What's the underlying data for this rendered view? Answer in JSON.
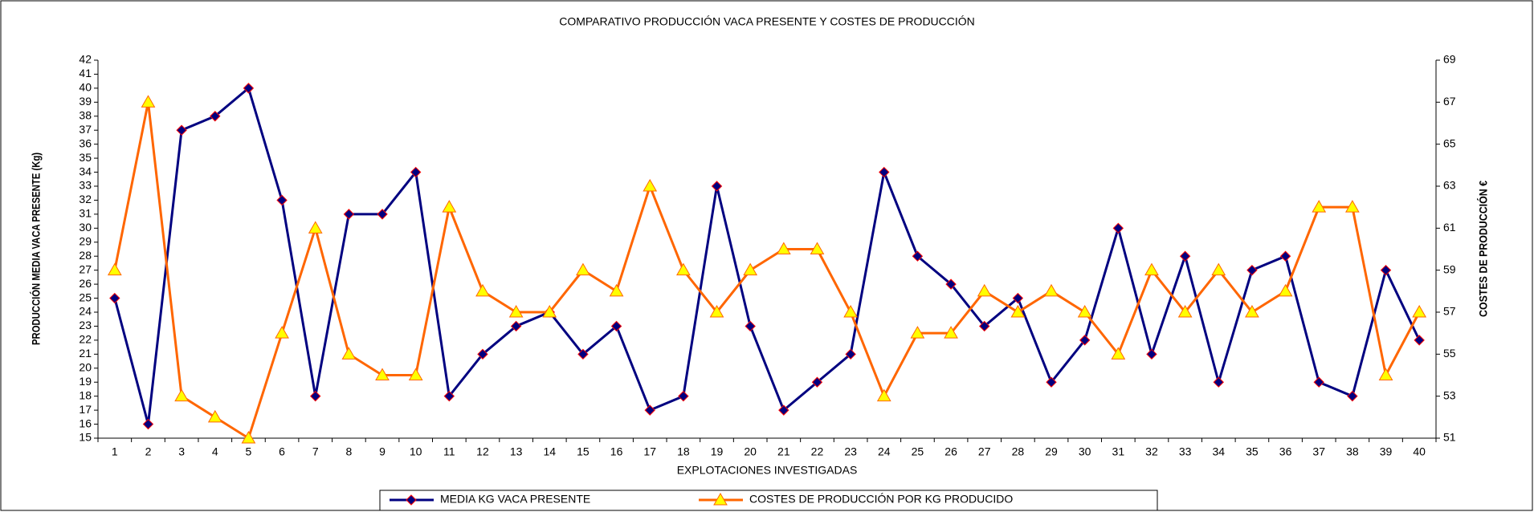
{
  "chart_data": {
    "type": "line",
    "title": "COMPARATIVO PRODUCCIÓN VACA PRESENTE Y COSTES DE PRODUCCIÓN",
    "x_label": "EXPLOTACIONES INVESTIGADAS",
    "y_label": "PRODUCCIÓN MEDIA VACA PRESENTE (Kg)",
    "y2_label": "COSTES DE PRODUCCIÓN €",
    "categories": [
      "1",
      "2",
      "3",
      "4",
      "5",
      "6",
      "7",
      "8",
      "9",
      "10",
      "11",
      "12",
      "13",
      "14",
      "15",
      "16",
      "17",
      "18",
      "19",
      "20",
      "21",
      "22",
      "23",
      "24",
      "25",
      "26",
      "27",
      "28",
      "29",
      "30",
      "31",
      "32",
      "33",
      "34",
      "35",
      "36",
      "37",
      "38",
      "39",
      "40"
    ],
    "ylim": [
      15,
      42
    ],
    "yticks": [
      15,
      16,
      17,
      18,
      19,
      20,
      21,
      22,
      23,
      24,
      25,
      26,
      27,
      28,
      29,
      30,
      31,
      32,
      33,
      34,
      35,
      36,
      37,
      38,
      39,
      40,
      41,
      42
    ],
    "y2lim": [
      51,
      69
    ],
    "y2ticks": [
      51,
      53,
      55,
      57,
      59,
      61,
      63,
      65,
      67,
      69
    ],
    "legend": "bottom",
    "series": [
      {
        "name": "MEDIA KG VACA PRESENTE",
        "color": "#000080",
        "marker": "diamond",
        "marker_stroke": "#ff0000",
        "values": [
          25,
          16,
          37,
          38,
          40,
          32,
          18,
          31,
          31,
          34,
          18,
          21,
          23,
          24,
          21,
          23,
          17,
          18,
          33,
          23,
          17,
          19,
          21,
          34,
          28,
          26,
          23,
          25,
          19,
          22,
          30,
          21,
          28,
          19,
          27,
          28,
          19,
          18,
          27,
          22
        ]
      },
      {
        "name": "COSTES DE PRODUCCIÓN POR KG PRODUCIDO",
        "color": "#ff6600",
        "marker": "triangle",
        "marker_fill": "#ffff00",
        "axis": "y2",
        "values": [
          59,
          67,
          53,
          52,
          51,
          56,
          61,
          55,
          54,
          54,
          62,
          58,
          57,
          57,
          59,
          58,
          63,
          59,
          57,
          59,
          60,
          60,
          57,
          53,
          56,
          56,
          58,
          57,
          58,
          57,
          55,
          59,
          57,
          59,
          57,
          58,
          62,
          62,
          54,
          57
        ]
      }
    ]
  }
}
